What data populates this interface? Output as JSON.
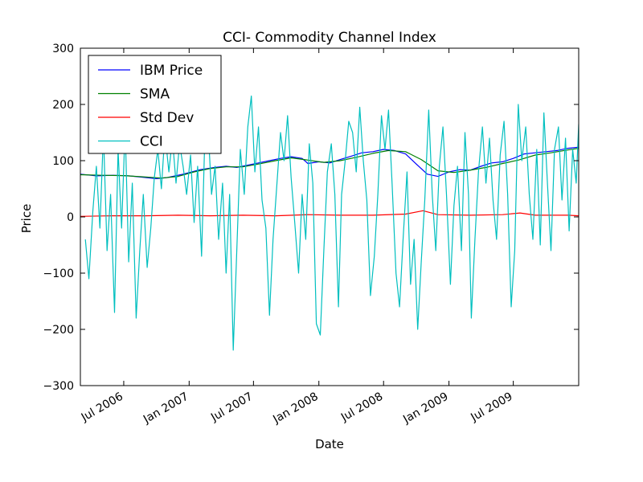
{
  "chart_data": {
    "type": "line",
    "title": "CCI- Commodity Channel Index",
    "xlabel": "Date",
    "ylabel": "Price",
    "ylim": [
      -300,
      300
    ],
    "xlim": [
      "2006-03-01",
      "2010-01-01"
    ],
    "y_ticks": [
      -300,
      -200,
      -100,
      0,
      100,
      200,
      300
    ],
    "y_tick_labels": [
      "−300",
      "−200",
      "−100",
      "0",
      "100",
      "200",
      "300"
    ],
    "x_ticks": [
      "2006-07-01",
      "2007-01-01",
      "2007-07-01",
      "2008-01-01",
      "2008-07-01",
      "2009-01-01",
      "2009-07-01"
    ],
    "x_tick_labels": [
      "Jul 2006",
      "Jan 2007",
      "Jul 2007",
      "Jan 2008",
      "Jul 2008",
      "Jan 2009",
      "Jul 2009"
    ],
    "grid": false,
    "legend_position": "top-left",
    "series": [
      {
        "name": "IBM Price",
        "color": "#0000ff",
        "points": [
          [
            "2006-03-01",
            76
          ],
          [
            "2006-04-15",
            73
          ],
          [
            "2006-06-01",
            74
          ],
          [
            "2006-07-15",
            73
          ],
          [
            "2006-09-01",
            70
          ],
          [
            "2006-10-01",
            68
          ],
          [
            "2006-11-01",
            70
          ],
          [
            "2006-12-15",
            76
          ],
          [
            "2007-02-01",
            84
          ],
          [
            "2007-03-15",
            88
          ],
          [
            "2007-04-15",
            90
          ],
          [
            "2007-05-15",
            88
          ],
          [
            "2007-06-15",
            92
          ],
          [
            "2007-07-15",
            96
          ],
          [
            "2007-08-15",
            100
          ],
          [
            "2007-09-15",
            104
          ],
          [
            "2007-10-15",
            107
          ],
          [
            "2007-11-15",
            104
          ],
          [
            "2007-12-01",
            95
          ],
          [
            "2008-01-01",
            98
          ],
          [
            "2008-02-01",
            96
          ],
          [
            "2008-03-01",
            102
          ],
          [
            "2008-04-01",
            108
          ],
          [
            "2008-05-01",
            114
          ],
          [
            "2008-06-01",
            116
          ],
          [
            "2008-07-01",
            120
          ],
          [
            "2008-08-01",
            118
          ],
          [
            "2008-09-01",
            112
          ],
          [
            "2008-10-01",
            94
          ],
          [
            "2008-11-01",
            76
          ],
          [
            "2008-12-01",
            72
          ],
          [
            "2009-01-01",
            80
          ],
          [
            "2009-02-01",
            84
          ],
          [
            "2009-03-01",
            83
          ],
          [
            "2009-04-01",
            90
          ],
          [
            "2009-05-01",
            96
          ],
          [
            "2009-06-01",
            98
          ],
          [
            "2009-07-01",
            104
          ],
          [
            "2009-08-01",
            112
          ],
          [
            "2009-09-01",
            114
          ],
          [
            "2009-10-01",
            116
          ],
          [
            "2009-11-01",
            118
          ],
          [
            "2009-12-01",
            122
          ],
          [
            "2010-01-01",
            124
          ]
        ]
      },
      {
        "name": "SMA",
        "color": "#008000",
        "points": [
          [
            "2006-03-01",
            75
          ],
          [
            "2006-05-01",
            74
          ],
          [
            "2006-07-01",
            73.5
          ],
          [
            "2006-09-01",
            71
          ],
          [
            "2006-10-15",
            69
          ],
          [
            "2006-12-01",
            72
          ],
          [
            "2007-01-15",
            80
          ],
          [
            "2007-03-01",
            86
          ],
          [
            "2007-04-15",
            89
          ],
          [
            "2007-06-01",
            89
          ],
          [
            "2007-07-15",
            94
          ],
          [
            "2007-09-01",
            100
          ],
          [
            "2007-10-15",
            105
          ],
          [
            "2007-12-01",
            101
          ],
          [
            "2008-01-15",
            97
          ],
          [
            "2008-03-01",
            100
          ],
          [
            "2008-04-15",
            106
          ],
          [
            "2008-06-01",
            113
          ],
          [
            "2008-07-15",
            118
          ],
          [
            "2008-09-01",
            116
          ],
          [
            "2008-10-15",
            102
          ],
          [
            "2008-12-01",
            82
          ],
          [
            "2009-01-15",
            79
          ],
          [
            "2009-03-01",
            83
          ],
          [
            "2009-04-15",
            88
          ],
          [
            "2009-06-01",
            95
          ],
          [
            "2009-07-15",
            101
          ],
          [
            "2009-09-01",
            110
          ],
          [
            "2009-10-15",
            114
          ],
          [
            "2009-12-01",
            119
          ],
          [
            "2010-01-01",
            122
          ]
        ]
      },
      {
        "name": "Std Dev",
        "color": "#ff0000",
        "points": [
          [
            "2006-03-01",
            1
          ],
          [
            "2006-06-01",
            2
          ],
          [
            "2006-09-01",
            2
          ],
          [
            "2006-12-01",
            3
          ],
          [
            "2007-03-01",
            2
          ],
          [
            "2007-06-01",
            3
          ],
          [
            "2007-09-01",
            2
          ],
          [
            "2007-12-01",
            4
          ],
          [
            "2008-03-01",
            3
          ],
          [
            "2008-06-01",
            3
          ],
          [
            "2008-09-01",
            5
          ],
          [
            "2008-10-20",
            11
          ],
          [
            "2008-12-01",
            4
          ],
          [
            "2009-03-01",
            3
          ],
          [
            "2009-06-01",
            4
          ],
          [
            "2009-07-20",
            7
          ],
          [
            "2009-09-01",
            3
          ],
          [
            "2009-12-01",
            3
          ],
          [
            "2010-01-01",
            2
          ]
        ]
      },
      {
        "name": "CCI",
        "color": "#00bfbf",
        "points": [
          [
            "2006-03-15",
            -40
          ],
          [
            "2006-03-25",
            -110
          ],
          [
            "2006-04-05",
            10
          ],
          [
            "2006-04-15",
            90
          ],
          [
            "2006-04-25",
            -20
          ],
          [
            "2006-05-05",
            150
          ],
          [
            "2006-05-15",
            -60
          ],
          [
            "2006-05-25",
            40
          ],
          [
            "2006-06-05",
            -170
          ],
          [
            "2006-06-15",
            120
          ],
          [
            "2006-06-25",
            -20
          ],
          [
            "2006-07-05",
            160
          ],
          [
            "2006-07-15",
            -80
          ],
          [
            "2006-07-25",
            60
          ],
          [
            "2006-08-05",
            -180
          ],
          [
            "2006-08-15",
            -60
          ],
          [
            "2006-08-25",
            40
          ],
          [
            "2006-09-05",
            -90
          ],
          [
            "2006-09-15",
            -20
          ],
          [
            "2006-09-25",
            70
          ],
          [
            "2006-10-05",
            120
          ],
          [
            "2006-10-15",
            50
          ],
          [
            "2006-10-25",
            150
          ],
          [
            "2006-11-05",
            80
          ],
          [
            "2006-11-15",
            140
          ],
          [
            "2006-11-25",
            60
          ],
          [
            "2006-12-05",
            130
          ],
          [
            "2006-12-15",
            90
          ],
          [
            "2006-12-25",
            40
          ],
          [
            "2007-01-05",
            110
          ],
          [
            "2007-01-15",
            -10
          ],
          [
            "2007-01-25",
            90
          ],
          [
            "2007-02-05",
            -70
          ],
          [
            "2007-02-15",
            160
          ],
          [
            "2007-02-25",
            140
          ],
          [
            "2007-03-05",
            40
          ],
          [
            "2007-03-15",
            90
          ],
          [
            "2007-03-25",
            -40
          ],
          [
            "2007-04-05",
            60
          ],
          [
            "2007-04-15",
            -100
          ],
          [
            "2007-04-25",
            40
          ],
          [
            "2007-05-05",
            -237
          ],
          [
            "2007-05-15",
            -60
          ],
          [
            "2007-05-25",
            120
          ],
          [
            "2007-06-05",
            40
          ],
          [
            "2007-06-15",
            160
          ],
          [
            "2007-06-25",
            215
          ],
          [
            "2007-07-05",
            80
          ],
          [
            "2007-07-15",
            160
          ],
          [
            "2007-07-25",
            30
          ],
          [
            "2007-08-05",
            -20
          ],
          [
            "2007-08-15",
            -175
          ],
          [
            "2007-08-25",
            -40
          ],
          [
            "2007-09-05",
            60
          ],
          [
            "2007-09-15",
            150
          ],
          [
            "2007-09-25",
            100
          ],
          [
            "2007-10-05",
            180
          ],
          [
            "2007-10-15",
            70
          ],
          [
            "2007-10-25",
            -10
          ],
          [
            "2007-11-05",
            -100
          ],
          [
            "2007-11-15",
            40
          ],
          [
            "2007-11-25",
            -40
          ],
          [
            "2007-12-05",
            130
          ],
          [
            "2007-12-15",
            60
          ],
          [
            "2007-12-25",
            -190
          ],
          [
            "2008-01-05",
            -210
          ],
          [
            "2008-01-15",
            -60
          ],
          [
            "2008-01-25",
            80
          ],
          [
            "2008-02-05",
            130
          ],
          [
            "2008-02-15",
            40
          ],
          [
            "2008-02-25",
            -160
          ],
          [
            "2008-03-05",
            40
          ],
          [
            "2008-03-15",
            100
          ],
          [
            "2008-03-25",
            170
          ],
          [
            "2008-04-05",
            150
          ],
          [
            "2008-04-15",
            80
          ],
          [
            "2008-04-25",
            195
          ],
          [
            "2008-05-05",
            100
          ],
          [
            "2008-05-15",
            30
          ],
          [
            "2008-05-25",
            -140
          ],
          [
            "2008-06-05",
            -70
          ],
          [
            "2008-06-15",
            40
          ],
          [
            "2008-06-25",
            180
          ],
          [
            "2008-07-05",
            120
          ],
          [
            "2008-07-15",
            190
          ],
          [
            "2008-07-25",
            60
          ],
          [
            "2008-08-05",
            -100
          ],
          [
            "2008-08-15",
            -160
          ],
          [
            "2008-08-25",
            -40
          ],
          [
            "2008-09-05",
            80
          ],
          [
            "2008-09-15",
            -120
          ],
          [
            "2008-09-25",
            -40
          ],
          [
            "2008-10-05",
            -200
          ],
          [
            "2008-10-15",
            -80
          ],
          [
            "2008-10-25",
            30
          ],
          [
            "2008-11-05",
            190
          ],
          [
            "2008-11-15",
            40
          ],
          [
            "2008-11-25",
            -60
          ],
          [
            "2008-12-05",
            90
          ],
          [
            "2008-12-15",
            160
          ],
          [
            "2008-12-25",
            40
          ],
          [
            "2009-01-05",
            -120
          ],
          [
            "2009-01-15",
            20
          ],
          [
            "2009-01-25",
            90
          ],
          [
            "2009-02-05",
            -60
          ],
          [
            "2009-02-15",
            150
          ],
          [
            "2009-02-25",
            40
          ],
          [
            "2009-03-05",
            -180
          ],
          [
            "2009-03-15",
            -40
          ],
          [
            "2009-03-25",
            80
          ],
          [
            "2009-04-05",
            160
          ],
          [
            "2009-04-15",
            60
          ],
          [
            "2009-04-25",
            140
          ],
          [
            "2009-05-05",
            30
          ],
          [
            "2009-05-15",
            -40
          ],
          [
            "2009-05-25",
            110
          ],
          [
            "2009-06-05",
            170
          ],
          [
            "2009-06-15",
            40
          ],
          [
            "2009-06-25",
            -160
          ],
          [
            "2009-07-05",
            -60
          ],
          [
            "2009-07-15",
            200
          ],
          [
            "2009-07-25",
            100
          ],
          [
            "2009-08-05",
            160
          ],
          [
            "2009-08-15",
            40
          ],
          [
            "2009-08-25",
            -40
          ],
          [
            "2009-09-05",
            120
          ],
          [
            "2009-09-15",
            -50
          ],
          [
            "2009-09-25",
            185
          ],
          [
            "2009-10-05",
            60
          ],
          [
            "2009-10-15",
            -60
          ],
          [
            "2009-10-25",
            120
          ],
          [
            "2009-11-05",
            160
          ],
          [
            "2009-11-15",
            30
          ],
          [
            "2009-11-25",
            140
          ],
          [
            "2009-12-05",
            -25
          ],
          [
            "2009-12-15",
            120
          ],
          [
            "2009-12-25",
            60
          ],
          [
            "2010-01-01",
            165
          ]
        ]
      }
    ]
  }
}
